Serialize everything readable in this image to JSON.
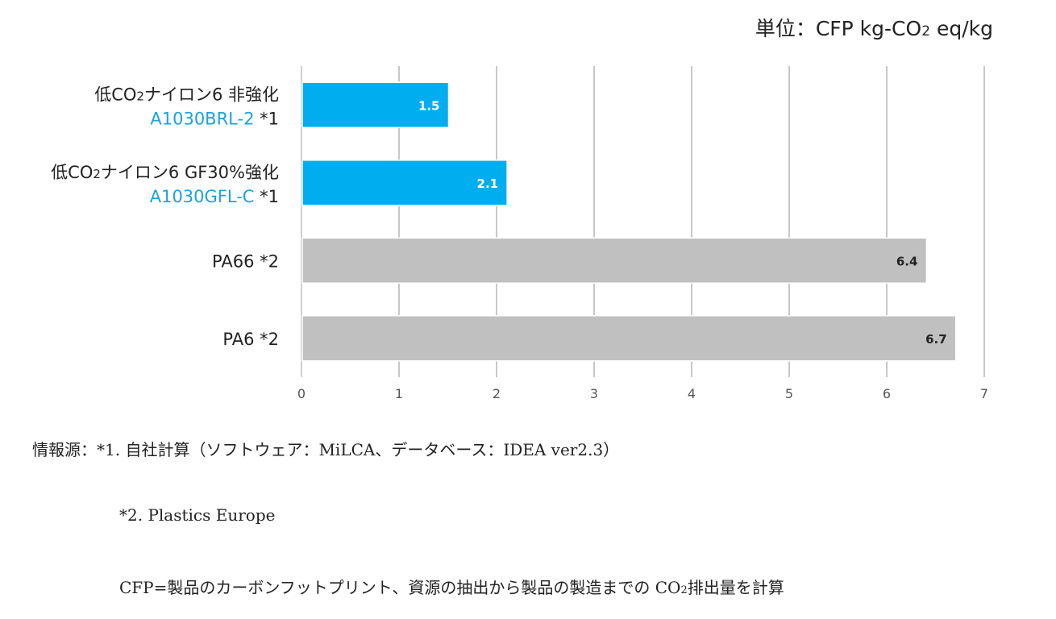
{
  "unit_label": {
    "prefix": "単位：CFP kg-CO",
    "sub": "2",
    "suffix": " eq/kg"
  },
  "chart_data": {
    "type": "bar",
    "orientation": "horizontal",
    "xlim": [
      0,
      7
    ],
    "x_ticks": [
      "0",
      "1",
      "2",
      "3",
      "4",
      "5",
      "6",
      "7"
    ],
    "grid": true,
    "bars": [
      {
        "label_pre": "低CO",
        "label_sub": "2",
        "label_post": "ナイロン6  非強化",
        "label_line2": "A1030BRL-2",
        "label_note": " *1",
        "value": 1.5,
        "value_label": "1.5",
        "color": "#00aeef",
        "value_color": "#ffffff"
      },
      {
        "label_pre": "低CO",
        "label_sub": "2",
        "label_post": "ナイロン6  GF30%強化",
        "label_line2": "A1030GFL-C",
        "label_note": " *1",
        "value": 2.1,
        "value_label": "2.1",
        "color": "#00aeef",
        "value_color": "#ffffff"
      },
      {
        "label_pre": "PA66 *2",
        "label_sub": "",
        "label_post": "",
        "label_line2": "",
        "label_note": "",
        "value": 6.4,
        "value_label": "6.4",
        "color": "#c0c0c0",
        "value_color": "#222222"
      },
      {
        "label_pre": "PA6 *2",
        "label_sub": "",
        "label_post": "",
        "label_line2": "",
        "label_note": "",
        "value": 6.7,
        "value_label": "6.7",
        "color": "#c0c0c0",
        "value_color": "#222222"
      }
    ],
    "product_label_color": "#1aa3dc"
  },
  "notes": {
    "line1": "情報源：*1. 自社計算（ソフトウェア：MiLCA、データベース：IDEA ver2.3）",
    "line2": "*2. Plastics Europe",
    "line3_pre": "CFP=製品のカーボンフットプリント、資源の抽出から製品の製造までの CO",
    "line3_sub": "2",
    "line3_post": "排出量を計算"
  }
}
